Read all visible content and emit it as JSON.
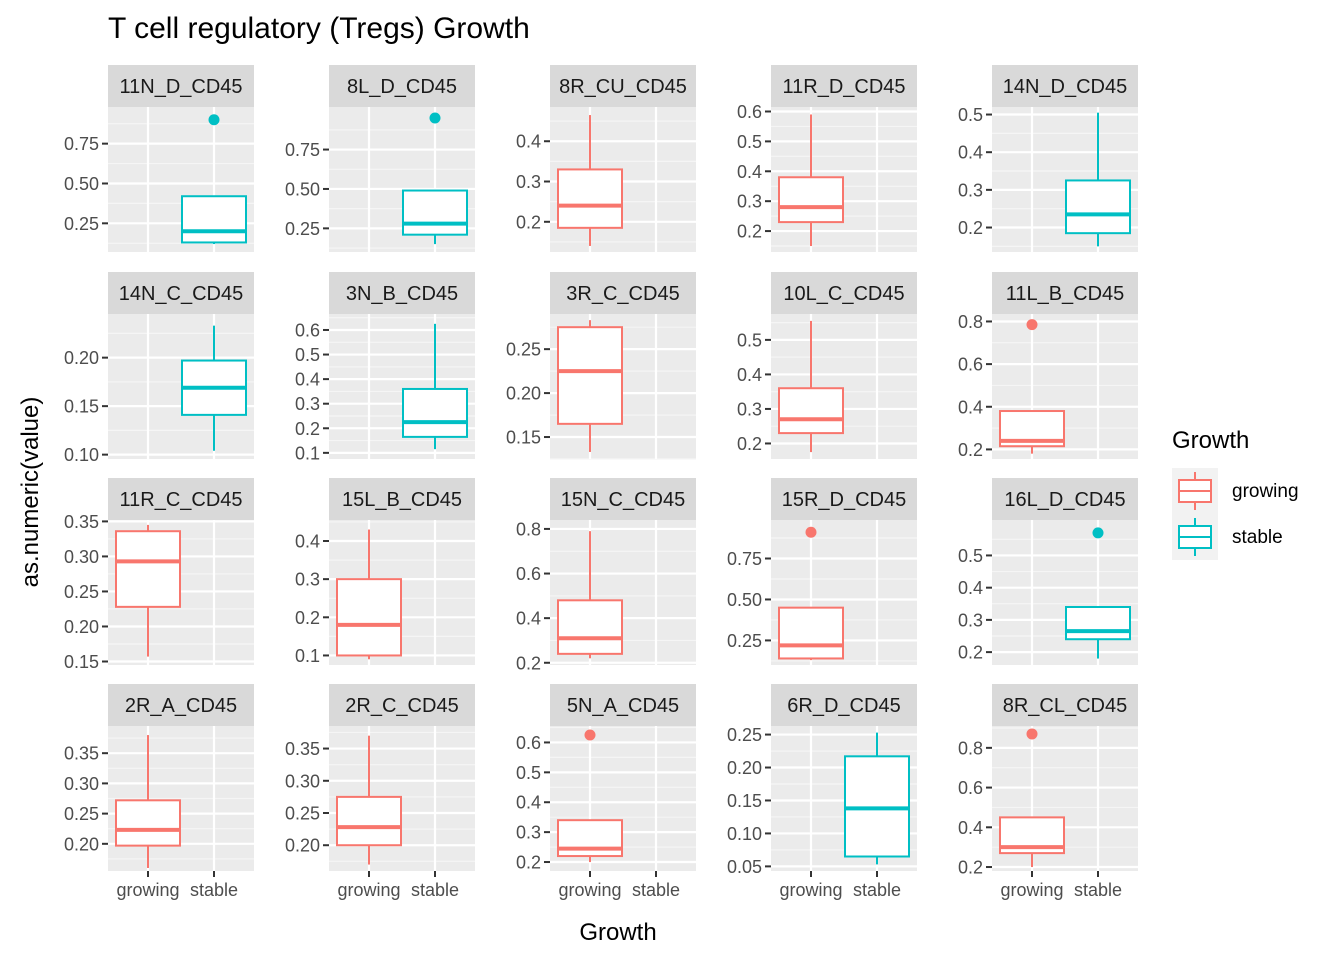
{
  "chart_data": {
    "type": "boxplot",
    "title": "T cell regulatory (Tregs) Growth",
    "xlabel": "Growth",
    "ylabel": "as.numeric(value)",
    "categories": [
      "growing",
      "stable"
    ],
    "colors": {
      "growing": "#F8766D",
      "stable": "#00BFC4"
    },
    "legend": {
      "title": "Growth",
      "position": "right",
      "entries": [
        "growing",
        "stable"
      ]
    },
    "grid": true,
    "panels": [
      {
        "name": "11N_D_CD45",
        "ylim": [
          0.07,
          0.98
        ],
        "yticks": [
          0.25,
          0.5,
          0.75
        ],
        "ytick_labels": [
          "0.25",
          "0.50",
          "0.75"
        ],
        "boxes": [
          {
            "group": "stable",
            "min": 0.12,
            "q1": 0.13,
            "median": 0.2,
            "q3": 0.42,
            "max": 0.42,
            "outliers": [
              0.9
            ]
          }
        ]
      },
      {
        "name": "8L_D_CD45",
        "ylim": [
          0.1,
          1.02
        ],
        "yticks": [
          0.25,
          0.5,
          0.75
        ],
        "ytick_labels": [
          "0.25",
          "0.50",
          "0.75"
        ],
        "boxes": [
          {
            "group": "stable",
            "min": 0.15,
            "q1": 0.21,
            "median": 0.28,
            "q3": 0.49,
            "max": 0.49,
            "outliers": [
              0.95
            ]
          }
        ]
      },
      {
        "name": "8R_CU_CD45",
        "ylim": [
          0.125,
          0.485
        ],
        "yticks": [
          0.2,
          0.3,
          0.4
        ],
        "ytick_labels": [
          "0.2",
          "0.3",
          "0.4"
        ],
        "boxes": [
          {
            "group": "growing",
            "min": 0.14,
            "q1": 0.185,
            "median": 0.24,
            "q3": 0.33,
            "max": 0.465,
            "outliers": []
          }
        ]
      },
      {
        "name": "11R_D_CD45",
        "ylim": [
          0.13,
          0.615
        ],
        "yticks": [
          0.2,
          0.3,
          0.4,
          0.5,
          0.6
        ],
        "ytick_labels": [
          "0.2",
          "0.3",
          "0.4",
          "0.5",
          "0.6"
        ],
        "boxes": [
          {
            "group": "growing",
            "min": 0.15,
            "q1": 0.23,
            "median": 0.28,
            "q3": 0.38,
            "max": 0.59,
            "outliers": []
          }
        ]
      },
      {
        "name": "14N_D_CD45",
        "ylim": [
          0.135,
          0.52
        ],
        "yticks": [
          0.2,
          0.3,
          0.4,
          0.5
        ],
        "ytick_labels": [
          "0.2",
          "0.3",
          "0.4",
          "0.5"
        ],
        "boxes": [
          {
            "group": "stable",
            "min": 0.15,
            "q1": 0.185,
            "median": 0.235,
            "q3": 0.325,
            "max": 0.505,
            "outliers": []
          }
        ]
      },
      {
        "name": "14N_C_CD45",
        "ylim": [
          0.0955,
          0.245
        ],
        "yticks": [
          0.1,
          0.15,
          0.2
        ],
        "ytick_labels": [
          "0.10",
          "0.15",
          "0.20"
        ],
        "boxes": [
          {
            "group": "stable",
            "min": 0.104,
            "q1": 0.141,
            "median": 0.169,
            "q3": 0.197,
            "max": 0.233,
            "outliers": []
          }
        ]
      },
      {
        "name": "3N_B_CD45",
        "ylim": [
          0.075,
          0.665
        ],
        "yticks": [
          0.1,
          0.2,
          0.3,
          0.4,
          0.5,
          0.6
        ],
        "ytick_labels": [
          "0.1",
          "0.2",
          "0.3",
          "0.4",
          "0.5",
          "0.6"
        ],
        "boxes": [
          {
            "group": "stable",
            "min": 0.115,
            "q1": 0.165,
            "median": 0.225,
            "q3": 0.36,
            "max": 0.625,
            "outliers": []
          }
        ]
      },
      {
        "name": "3R_C_CD45",
        "ylim": [
          0.125,
          0.29
        ],
        "yticks": [
          0.15,
          0.2,
          0.25
        ],
        "ytick_labels": [
          "0.15",
          "0.20",
          "0.25"
        ],
        "boxes": [
          {
            "group": "growing",
            "min": 0.133,
            "q1": 0.165,
            "median": 0.225,
            "q3": 0.275,
            "max": 0.283,
            "outliers": []
          }
        ]
      },
      {
        "name": "10L_C_CD45",
        "ylim": [
          0.155,
          0.575
        ],
        "yticks": [
          0.2,
          0.3,
          0.4,
          0.5
        ],
        "ytick_labels": [
          "0.2",
          "0.3",
          "0.4",
          "0.5"
        ],
        "boxes": [
          {
            "group": "growing",
            "min": 0.175,
            "q1": 0.23,
            "median": 0.27,
            "q3": 0.36,
            "max": 0.555,
            "outliers": []
          }
        ]
      },
      {
        "name": "11L_B_CD45",
        "ylim": [
          0.155,
          0.835
        ],
        "yticks": [
          0.2,
          0.4,
          0.6,
          0.8
        ],
        "ytick_labels": [
          "0.2",
          "0.4",
          "0.6",
          "0.8"
        ],
        "boxes": [
          {
            "group": "growing",
            "min": 0.18,
            "q1": 0.215,
            "median": 0.24,
            "q3": 0.38,
            "max": 0.38,
            "outliers": [
              0.785
            ]
          }
        ]
      },
      {
        "name": "11R_C_CD45",
        "ylim": [
          0.145,
          0.352
        ],
        "yticks": [
          0.15,
          0.2,
          0.25,
          0.3,
          0.35
        ],
        "ytick_labels": [
          "0.15",
          "0.20",
          "0.25",
          "0.30",
          "0.35"
        ],
        "boxes": [
          {
            "group": "growing",
            "min": 0.157,
            "q1": 0.228,
            "median": 0.293,
            "q3": 0.336,
            "max": 0.345,
            "outliers": []
          }
        ]
      },
      {
        "name": "15L_B_CD45",
        "ylim": [
          0.075,
          0.455
        ],
        "yticks": [
          0.1,
          0.2,
          0.3,
          0.4
        ],
        "ytick_labels": [
          "0.1",
          "0.2",
          "0.3",
          "0.4"
        ],
        "boxes": [
          {
            "group": "growing",
            "min": 0.09,
            "q1": 0.1,
            "median": 0.18,
            "q3": 0.3,
            "max": 0.43,
            "outliers": []
          }
        ]
      },
      {
        "name": "15N_C_CD45",
        "ylim": [
          0.19,
          0.84
        ],
        "yticks": [
          0.2,
          0.4,
          0.6,
          0.8
        ],
        "ytick_labels": [
          "0.2",
          "0.4",
          "0.6",
          "0.8"
        ],
        "boxes": [
          {
            "group": "growing",
            "min": 0.22,
            "q1": 0.24,
            "median": 0.31,
            "q3": 0.48,
            "max": 0.79,
            "outliers": []
          }
        ]
      },
      {
        "name": "15R_D_CD45",
        "ylim": [
          0.1,
          0.985
        ],
        "yticks": [
          0.25,
          0.5,
          0.75
        ],
        "ytick_labels": [
          "0.25",
          "0.50",
          "0.75"
        ],
        "boxes": [
          {
            "group": "growing",
            "min": 0.13,
            "q1": 0.14,
            "median": 0.22,
            "q3": 0.45,
            "max": 0.45,
            "outliers": [
              0.91
            ]
          }
        ]
      },
      {
        "name": "16L_D_CD45",
        "ylim": [
          0.16,
          0.61
        ],
        "yticks": [
          0.2,
          0.3,
          0.4,
          0.5
        ],
        "ytick_labels": [
          "0.2",
          "0.3",
          "0.4",
          "0.5"
        ],
        "boxes": [
          {
            "group": "stable",
            "min": 0.18,
            "q1": 0.24,
            "median": 0.265,
            "q3": 0.34,
            "max": 0.34,
            "outliers": [
              0.57
            ]
          }
        ]
      },
      {
        "name": "2R_A_CD45",
        "ylim": [
          0.155,
          0.395
        ],
        "yticks": [
          0.2,
          0.25,
          0.3,
          0.35
        ],
        "ytick_labels": [
          "0.20",
          "0.25",
          "0.30",
          "0.35"
        ],
        "boxes": [
          {
            "group": "growing",
            "min": 0.16,
            "q1": 0.197,
            "median": 0.223,
            "q3": 0.272,
            "max": 0.38,
            "outliers": []
          }
        ]
      },
      {
        "name": "2R_C_CD45",
        "ylim": [
          0.16,
          0.385
        ],
        "yticks": [
          0.2,
          0.25,
          0.3,
          0.35
        ],
        "ytick_labels": [
          "0.20",
          "0.25",
          "0.30",
          "0.35"
        ],
        "boxes": [
          {
            "group": "growing",
            "min": 0.17,
            "q1": 0.2,
            "median": 0.228,
            "q3": 0.275,
            "max": 0.37,
            "outliers": []
          }
        ]
      },
      {
        "name": "5N_A_CD45",
        "ylim": [
          0.17,
          0.655
        ],
        "yticks": [
          0.2,
          0.3,
          0.4,
          0.5,
          0.6
        ],
        "ytick_labels": [
          "0.2",
          "0.3",
          "0.4",
          "0.5",
          "0.6"
        ],
        "boxes": [
          {
            "group": "growing",
            "min": 0.2,
            "q1": 0.22,
            "median": 0.245,
            "q3": 0.34,
            "max": 0.34,
            "outliers": [
              0.625
            ]
          }
        ]
      },
      {
        "name": "6R_D_CD45",
        "ylim": [
          0.043,
          0.263
        ],
        "yticks": [
          0.05,
          0.1,
          0.15,
          0.2,
          0.25
        ],
        "ytick_labels": [
          "0.05",
          "0.10",
          "0.15",
          "0.20",
          "0.25"
        ],
        "boxes": [
          {
            "group": "stable",
            "min": 0.053,
            "q1": 0.065,
            "median": 0.138,
            "q3": 0.217,
            "max": 0.253,
            "outliers": []
          }
        ]
      },
      {
        "name": "8R_CL_CD45",
        "ylim": [
          0.18,
          0.91
        ],
        "yticks": [
          0.2,
          0.4,
          0.6,
          0.8
        ],
        "ytick_labels": [
          "0.2",
          "0.4",
          "0.6",
          "0.8"
        ],
        "boxes": [
          {
            "group": "growing",
            "min": 0.2,
            "q1": 0.27,
            "median": 0.3,
            "q3": 0.45,
            "max": 0.45,
            "outliers": [
              0.87
            ]
          }
        ]
      }
    ]
  }
}
